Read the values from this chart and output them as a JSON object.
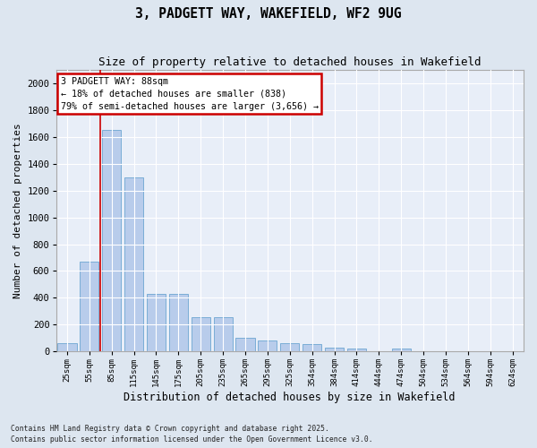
{
  "title": "3, PADGETT WAY, WAKEFIELD, WF2 9UG",
  "subtitle": "Size of property relative to detached houses in Wakefield",
  "xlabel": "Distribution of detached houses by size in Wakefield",
  "ylabel": "Number of detached properties",
  "categories": [
    "25sqm",
    "55sqm",
    "85sqm",
    "115sqm",
    "145sqm",
    "175sqm",
    "205sqm",
    "235sqm",
    "265sqm",
    "295sqm",
    "325sqm",
    "354sqm",
    "384sqm",
    "414sqm",
    "444sqm",
    "474sqm",
    "504sqm",
    "534sqm",
    "564sqm",
    "594sqm",
    "624sqm"
  ],
  "values": [
    65,
    670,
    1650,
    1300,
    430,
    430,
    255,
    255,
    100,
    80,
    60,
    55,
    30,
    20,
    0,
    20,
    0,
    0,
    0,
    0,
    0
  ],
  "bar_color": "#b8cceb",
  "bar_edge_color": "#7aadd6",
  "vline_color": "#cc0000",
  "vline_index": 1.5,
  "annotation_title": "3 PADGETT WAY: 88sqm",
  "annotation_line1": "← 18% of detached houses are smaller (838)",
  "annotation_line2": "79% of semi-detached houses are larger (3,656) →",
  "annotation_box_color": "#cc0000",
  "ylim": [
    0,
    2100
  ],
  "yticks": [
    0,
    200,
    400,
    600,
    800,
    1000,
    1200,
    1400,
    1600,
    1800,
    2000
  ],
  "footer_line1": "Contains HM Land Registry data © Crown copyright and database right 2025.",
  "footer_line2": "Contains public sector information licensed under the Open Government Licence v3.0.",
  "bg_color": "#dde6f0",
  "plot_bg_color": "#e8eef8"
}
